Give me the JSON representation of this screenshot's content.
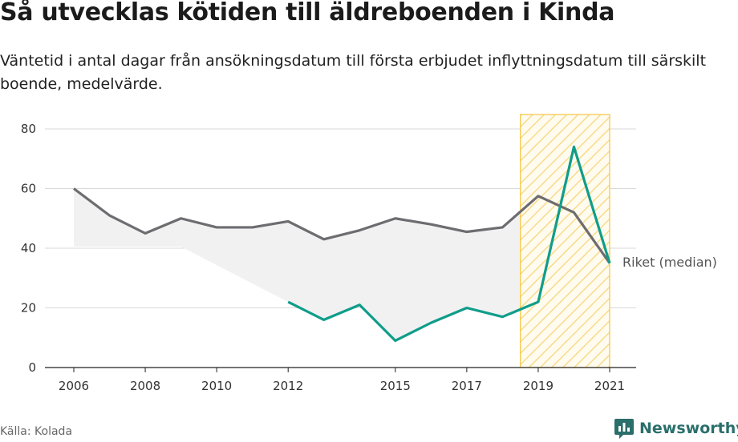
{
  "title": "Så utvecklas kötiden till äldreboenden i Kinda",
  "subtitle": "Väntetid i antal dagar från ansökningsdatum till första erbjudet inflyttningsdatum till särskilt boende, medelvärde.",
  "source": "Källa: Kolada",
  "brand": {
    "name": "Newsworthy",
    "icon": "newsworthy-logo-icon"
  },
  "colors": {
    "kinda": "#0f9d8a",
    "riket": "#6d6c70",
    "highlight": "#f5c542",
    "grid": "#d9d9d9",
    "band": "#f1f1f1"
  },
  "chart_data": {
    "type": "line",
    "x": [
      2006,
      2007,
      2008,
      2009,
      2010,
      2011,
      2012,
      2013,
      2014,
      2015,
      2016,
      2017,
      2018,
      2019,
      2020,
      2021
    ],
    "x_tick_labels": [
      "2006",
      "2008",
      "2010",
      "2012",
      "2015",
      "2017",
      "2019",
      "2021"
    ],
    "y_tick_labels": [
      "0",
      "20",
      "40",
      "60",
      "80"
    ],
    "ylim": [
      0,
      80
    ],
    "xlim": [
      2006,
      2021
    ],
    "grid": true,
    "highlight_range": [
      2018.5,
      2021
    ],
    "series": [
      {
        "name": "",
        "key": "kinda",
        "values": [
          null,
          null,
          null,
          null,
          null,
          null,
          22,
          16,
          21,
          9,
          15,
          20,
          17,
          22,
          74,
          35
        ]
      },
      {
        "name": "Riket (median)",
        "key": "riket",
        "values": [
          60,
          51,
          45,
          50,
          47,
          47,
          49,
          43,
          46,
          50,
          48,
          45.5,
          47,
          57.5,
          52,
          35
        ]
      }
    ]
  }
}
